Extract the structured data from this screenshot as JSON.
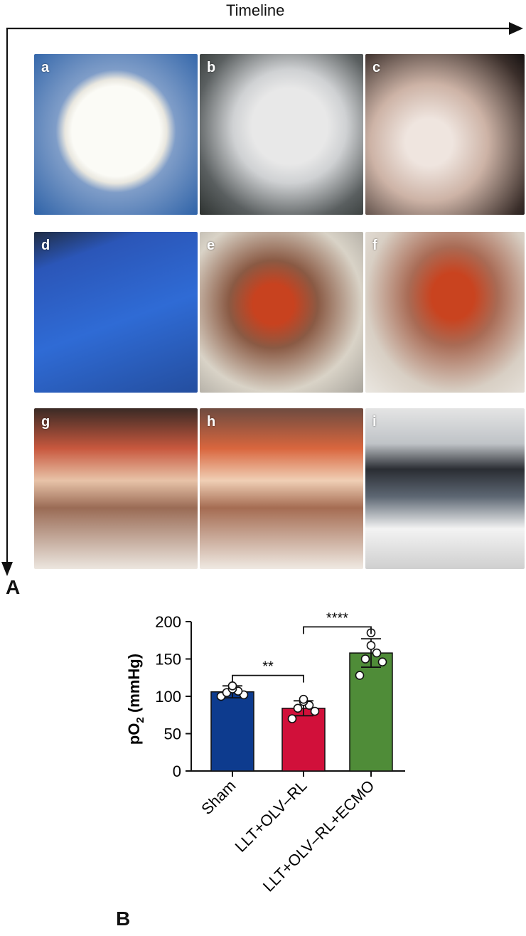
{
  "figure": {
    "timeline_label": "Timeline",
    "panel_a_label": "A",
    "panel_b_label": "B",
    "photos": [
      {
        "label": "a"
      },
      {
        "label": "b"
      },
      {
        "label": "c"
      },
      {
        "label": "d"
      },
      {
        "label": "e"
      },
      {
        "label": "f"
      },
      {
        "label": "g"
      },
      {
        "label": "h"
      },
      {
        "label": "i"
      }
    ]
  },
  "chart_data": {
    "type": "bar",
    "ylabel_main": "pO",
    "ylabel_sub": "2",
    "ylabel_unit": " (mmHg)",
    "ylim": [
      0,
      200
    ],
    "yticks": [
      0,
      50,
      100,
      150,
      200
    ],
    "categories": [
      "Sham",
      "LLT+OLV–RL",
      "LLT+OLV–RL+ECMO"
    ],
    "values": [
      106,
      84,
      158
    ],
    "errors": [
      8,
      10,
      19
    ],
    "colors": [
      "#0d3b8e",
      "#d1103a",
      "#4f8c38"
    ],
    "points": [
      [
        100,
        102,
        105,
        107,
        110,
        114
      ],
      [
        70,
        80,
        84,
        88,
        93,
        96
      ],
      [
        128,
        146,
        150,
        158,
        168,
        185
      ]
    ],
    "significance": [
      {
        "from": 0,
        "to": 1,
        "label": "**",
        "y": 128
      },
      {
        "from": 1,
        "to": 2,
        "label": "****",
        "y": 193
      }
    ]
  }
}
